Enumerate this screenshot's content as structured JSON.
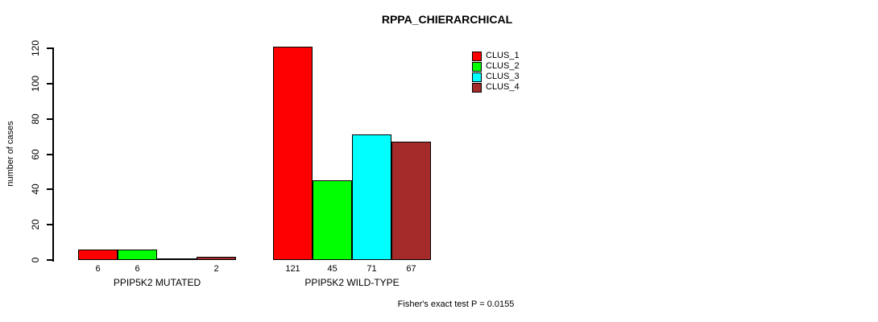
{
  "chart_data": {
    "type": "bar",
    "title": "RPPA_CHIERARCHICAL",
    "ylabel": "number of cases",
    "ylim": [
      0,
      120
    ],
    "yticks": [
      0,
      20,
      40,
      60,
      80,
      100,
      120
    ],
    "grid": false,
    "legend_position": "top-right",
    "groups": [
      "PPIP5K2 MUTATED",
      "PPIP5K2 WILD-TYPE"
    ],
    "series": [
      {
        "name": "CLUS_1",
        "color": "#FF0000",
        "values": [
          6,
          121
        ]
      },
      {
        "name": "CLUS_2",
        "color": "#00FF00",
        "values": [
          6,
          45
        ]
      },
      {
        "name": "CLUS_3",
        "color": "#00FFFF",
        "values": [
          0,
          71
        ]
      },
      {
        "name": "CLUS_4",
        "color": "#A52A2A",
        "values": [
          2,
          67
        ]
      }
    ],
    "bar_value_labels": [
      [
        "6",
        "6",
        "",
        "2"
      ],
      [
        "121",
        "45",
        "71",
        "67"
      ]
    ],
    "annotation": "Fisher's exact test P = 0.0155"
  },
  "colors": {
    "background": "#FFFFFF",
    "axis": "#000000",
    "clus_1": "#FF0000",
    "clus_2": "#00FF00",
    "clus_3": "#00FFFF",
    "clus_4": "#A52A2A"
  }
}
